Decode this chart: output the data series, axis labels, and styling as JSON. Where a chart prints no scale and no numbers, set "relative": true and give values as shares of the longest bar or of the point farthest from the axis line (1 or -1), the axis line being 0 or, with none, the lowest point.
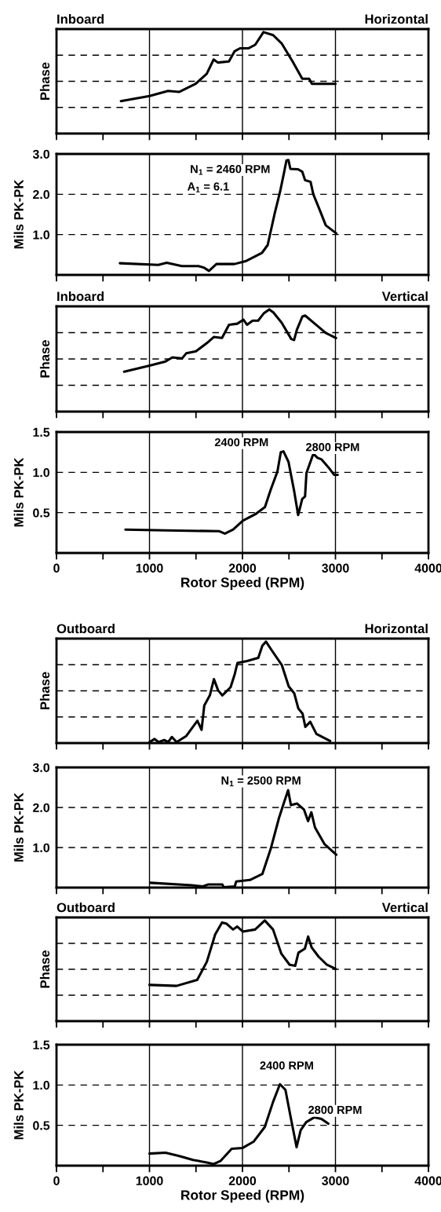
{
  "chart_data": [
    {
      "type": "line",
      "title": "Inboard",
      "subtitle": "Horizontal",
      "ylabel": "Phase",
      "relative": true,
      "grid": true,
      "tick_labels": false,
      "xlim": [
        0,
        4000
      ],
      "xticks": [
        0,
        {
          "value": 500,
          "label": null
        },
        1000,
        {
          "value": 1500,
          "label": null
        },
        2000,
        {
          "value": 2500,
          "label": null
        },
        3000,
        {
          "value": 3500,
          "label": null
        },
        4000
      ],
      "series": [
        {
          "color": "#000000",
          "x": [
            693,
            1000,
            1200,
            1318,
            1497,
            1616,
            1690,
            1735,
            1854,
            1914,
            1973,
            2063,
            2137,
            2226,
            2330,
            2420,
            2539,
            2643,
            2717,
            2747,
            3000
          ],
          "values": [
            0.32,
            0.37,
            0.42,
            0.41,
            0.49,
            0.59,
            0.73,
            0.7,
            0.71,
            0.81,
            0.84,
            0.84,
            0.875,
            1.0,
            0.97,
            0.89,
            0.71,
            0.54,
            0.54,
            0.49,
            0.49
          ]
        }
      ]
    },
    {
      "type": "line",
      "ylabel": "Mils PK-PK",
      "grid": true,
      "tick_labels": "y",
      "xlim": [
        0,
        4000
      ],
      "ylim": [
        0,
        3.0
      ],
      "yticks": [
        {
          "value": 1,
          "label": "1.0"
        },
        {
          "value": 2,
          "label": "2.0"
        },
        {
          "value": 3,
          "label": "3.0"
        }
      ],
      "xticks": [
        0,
        {
          "value": 500,
          "label": null
        },
        1000,
        {
          "value": 1500,
          "label": null
        },
        2000,
        {
          "value": 2500,
          "label": null
        },
        3000,
        {
          "value": 3500,
          "label": null
        },
        4000
      ],
      "annotations": [
        "N$_{1}$ = 2460 RPM",
        "A$_{1}$ = 6.1"
      ],
      "series": [
        {
          "color": "#000000",
          "x": [
            682,
            1095,
            1185,
            1348,
            1527,
            1586,
            1640,
            1720,
            1914,
            2033,
            2211,
            2271,
            2345,
            2405,
            2449,
            2473,
            2494,
            2515,
            2598,
            2643,
            2673,
            2732,
            2762,
            2836,
            2896,
            3009
          ],
          "values": [
            0.29,
            0.25,
            0.3,
            0.22,
            0.22,
            0.18,
            0.1,
            0.27,
            0.27,
            0.34,
            0.55,
            0.74,
            1.51,
            2.07,
            2.56,
            2.84,
            2.85,
            2.63,
            2.62,
            2.56,
            2.35,
            2.31,
            2.0,
            1.58,
            1.23,
            1.03
          ]
        }
      ]
    },
    {
      "type": "line",
      "title": "Inboard",
      "subtitle": "Vertical",
      "ylabel": "Phase",
      "relative": true,
      "grid": true,
      "tick_labels": false,
      "xlim": [
        0,
        4000
      ],
      "xticks": [
        0,
        {
          "value": 500,
          "label": null
        },
        1000,
        {
          "value": 1500,
          "label": null
        },
        2000,
        {
          "value": 2500,
          "label": null
        },
        3000,
        {
          "value": 3500,
          "label": null
        },
        4000
      ],
      "series": [
        {
          "color": "#000000",
          "x": [
            727,
            1000,
            1172,
            1246,
            1350,
            1395,
            1499,
            1617,
            1691,
            1780,
            1855,
            1944,
            2010,
            2049,
            2109,
            2168,
            2228,
            2288,
            2332,
            2421,
            2525,
            2555,
            2585,
            2644,
            2674,
            2778,
            2896,
            3006
          ],
          "values": [
            0.39,
            0.45,
            0.49,
            0.53,
            0.52,
            0.57,
            0.59,
            0.67,
            0.73,
            0.72,
            0.85,
            0.86,
            0.9,
            0.85,
            0.89,
            0.89,
            0.96,
            1.0,
            0.97,
            0.87,
            0.71,
            0.7,
            0.8,
            0.93,
            0.94,
            0.86,
            0.77,
            0.72
          ]
        }
      ]
    },
    {
      "type": "line",
      "ylabel": "Mils PK-PK",
      "xlabel": "Rotor Speed (RPM)",
      "grid": true,
      "xlim": [
        0,
        4000
      ],
      "ylim": [
        0,
        1.5
      ],
      "yticks": [
        {
          "value": 0.5,
          "label": "0.5"
        },
        {
          "value": 1,
          "label": "1.0"
        },
        {
          "value": 1.5,
          "label": "1.5"
        }
      ],
      "xticks": [
        0,
        {
          "value": 500,
          "label": null
        },
        1000,
        {
          "value": 1500,
          "label": null
        },
        2000,
        {
          "value": 2500,
          "label": null
        },
        3000,
        {
          "value": 3500,
          "label": null
        },
        4000
      ],
      "annotations": [
        "2400 RPM",
        "2800 RPM"
      ],
      "series": [
        {
          "color": "#000000",
          "x": [
            741,
            1187,
            1752,
            1811,
            1900,
            2004,
            2138,
            2242,
            2302,
            2376,
            2412,
            2441,
            2495,
            2554,
            2599,
            2643,
            2673,
            2688,
            2762,
            2807,
            2851,
            2926,
            2985,
            3024
          ],
          "values": [
            0.29,
            0.28,
            0.27,
            0.24,
            0.29,
            0.4,
            0.48,
            0.57,
            0.78,
            1.01,
            1.25,
            1.26,
            1.13,
            0.78,
            0.47,
            0.67,
            0.7,
            0.99,
            1.23,
            1.18,
            1.16,
            1.06,
            0.97,
            0.97
          ]
        }
      ]
    },
    {
      "type": "line",
      "title": "Outboard",
      "subtitle": "Horizontal",
      "ylabel": "Phase",
      "relative": true,
      "grid": true,
      "tick_labels": false,
      "xlim": [
        0,
        4000
      ],
      "xticks": [
        0,
        {
          "value": 500,
          "label": null
        },
        1000,
        {
          "value": 1500,
          "label": null
        },
        2000,
        {
          "value": 2500,
          "label": null
        },
        3000,
        {
          "value": 3500,
          "label": null
        },
        4000
      ],
      "series": [
        {
          "color": "#000000",
          "x": [
            1000,
            1054,
            1098,
            1158,
            1202,
            1241,
            1292,
            1396,
            1515,
            1560,
            1589,
            1649,
            1693,
            1738,
            1783,
            1872,
            1917,
            1946,
            2051,
            2170,
            2214,
            2253,
            2318,
            2423,
            2497,
            2557,
            2601,
            2646,
            2676,
            2729,
            2795,
            2943
          ],
          "values": [
            0.01,
            0.04,
            0.01,
            0.03,
            0.01,
            0.06,
            0.01,
            0.07,
            0.22,
            0.13,
            0.37,
            0.47,
            0.63,
            0.52,
            0.47,
            0.55,
            0.68,
            0.79,
            0.81,
            0.84,
            0.96,
            1.0,
            0.91,
            0.77,
            0.56,
            0.49,
            0.34,
            0.29,
            0.16,
            0.21,
            0.09,
            0.02
          ]
        }
      ]
    },
    {
      "type": "line",
      "ylabel": "Mils PK-PK",
      "grid": true,
      "tick_labels": "y",
      "xlim": [
        0,
        4000
      ],
      "ylim": [
        0,
        3.0
      ],
      "yticks": [
        {
          "value": 1,
          "label": "1.0"
        },
        {
          "value": 2,
          "label": "2.0"
        },
        {
          "value": 3,
          "label": "3.0"
        }
      ],
      "xticks": [
        0,
        {
          "value": 500,
          "label": null
        },
        1000,
        {
          "value": 1500,
          "label": null
        },
        2000,
        {
          "value": 2500,
          "label": null
        },
        3000,
        {
          "value": 3500,
          "label": null
        },
        4000
      ],
      "annotations": [
        "N$_{1}$ = 2500 RPM"
      ],
      "series": [
        {
          "color": "#000000",
          "x": [
            1009,
            1455,
            1574,
            1634,
            1783,
            1798,
            1917,
            1932,
            2080,
            2214,
            2304,
            2393,
            2452,
            2491,
            2521,
            2586,
            2661,
            2705,
            2741,
            2780,
            2884,
            3009
          ],
          "values": [
            0.12,
            0.06,
            0.03,
            0.08,
            0.08,
            0.01,
            0.03,
            0.15,
            0.19,
            0.34,
            0.97,
            1.74,
            2.16,
            2.43,
            2.06,
            2.1,
            1.95,
            1.66,
            1.88,
            1.5,
            1.08,
            0.82
          ]
        }
      ]
    },
    {
      "type": "line",
      "title": "Outboard",
      "subtitle": "Vertical",
      "ylabel": "Phase",
      "relative": true,
      "grid": true,
      "tick_labels": false,
      "xlim": [
        0,
        4000
      ],
      "xticks": [
        0,
        {
          "value": 500,
          "label": null
        },
        1000,
        {
          "value": 1500,
          "label": null
        },
        2000,
        {
          "value": 2500,
          "label": null
        },
        3000,
        {
          "value": 3500,
          "label": null
        },
        4000
      ],
      "series": [
        {
          "color": "#000000",
          "x": [
            1000,
            1291,
            1513,
            1617,
            1706,
            1780,
            1825,
            1899,
            1944,
            2003,
            2136,
            2240,
            2329,
            2418,
            2507,
            2567,
            2602,
            2671,
            2706,
            2745,
            2819,
            2908,
            3000
          ],
          "values": [
            0.36,
            0.35,
            0.41,
            0.59,
            0.86,
            0.98,
            0.97,
            0.91,
            0.94,
            0.89,
            0.91,
            1.0,
            0.91,
            0.67,
            0.56,
            0.55,
            0.68,
            0.72,
            0.84,
            0.73,
            0.64,
            0.56,
            0.52
          ]
        }
      ]
    },
    {
      "type": "line",
      "ylabel": "Mils PK-PK",
      "xlabel": "Rotor Speed (RPM)",
      "grid": true,
      "xlim": [
        0,
        4000
      ],
      "ylim": [
        0,
        1.5
      ],
      "yticks": [
        {
          "value": 0.5,
          "label": "0.5"
        },
        {
          "value": 1,
          "label": "1.0"
        },
        {
          "value": 1.5,
          "label": "1.5"
        }
      ],
      "xticks": [
        0,
        {
          "value": 500,
          "label": null
        },
        1000,
        {
          "value": 1500,
          "label": null
        },
        2000,
        {
          "value": 2500,
          "label": null
        },
        3000,
        {
          "value": 3500,
          "label": null
        },
        4000
      ],
      "annotations": [
        "2400 RPM",
        "2800 RPM"
      ],
      "series": [
        {
          "color": "#000000",
          "x": [
            1000,
            1172,
            1320,
            1469,
            1617,
            1691,
            1766,
            1884,
            2003,
            2122,
            2240,
            2329,
            2403,
            2462,
            2522,
            2582,
            2626,
            2685,
            2774,
            2849,
            2923
          ],
          "values": [
            0.15,
            0.16,
            0.12,
            0.07,
            0.04,
            0.02,
            0.06,
            0.21,
            0.22,
            0.3,
            0.48,
            0.79,
            1.01,
            0.94,
            0.58,
            0.23,
            0.44,
            0.54,
            0.6,
            0.58,
            0.52
          ]
        }
      ]
    }
  ]
}
